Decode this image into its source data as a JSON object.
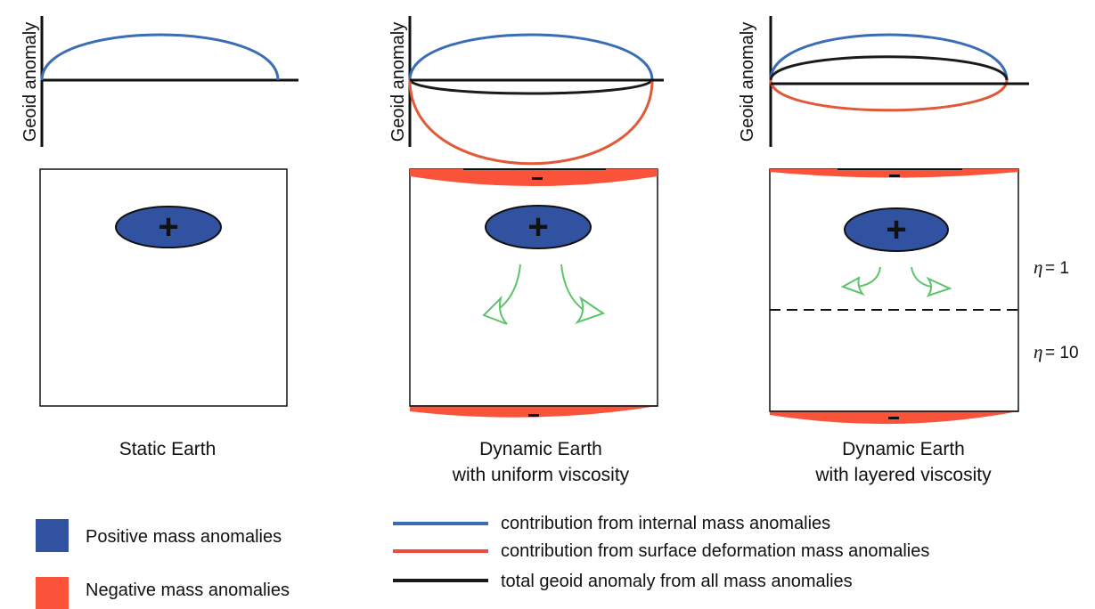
{
  "panels": [
    {
      "y_axis_label": "Geoid anomaly",
      "caption_line1": "Static Earth",
      "caption_line2": ""
    },
    {
      "y_axis_label": "Geoid anomaly",
      "caption_line1": "Dynamic Earth",
      "caption_line2": "with uniform viscosity"
    },
    {
      "y_axis_label": "Geoid anomaly",
      "caption_line1": "Dynamic Earth",
      "caption_line2": "with layered viscosity"
    }
  ],
  "signs": {
    "positive": "+",
    "negative": "−"
  },
  "viscosity_layers": [
    {
      "symbol": "η",
      "value": "= 1"
    },
    {
      "symbol": "η",
      "value": "= 10"
    }
  ],
  "legend": {
    "swatches": [
      {
        "label": "Positive mass anomalies",
        "color": "#3152a0"
      },
      {
        "label": "Negative mass anomalies",
        "color": "#f9533a"
      }
    ],
    "lines": [
      {
        "label": "contribution from internal mass anomalies",
        "color": "#3a6db5"
      },
      {
        "label": "contribution from surface deformation mass anomalies",
        "color": "#ef4b3c"
      },
      {
        "label": "total geoid anomaly from all mass anomalies",
        "color": "#1a1a1a"
      }
    ]
  },
  "colors": {
    "internal_curve": "#3a6db5",
    "surface_curve_left": "#d9683a",
    "surface_curve_right": "#ef4b3c",
    "total_curve": "#1a1a1a",
    "flow_arrow": "#5cc46a"
  }
}
